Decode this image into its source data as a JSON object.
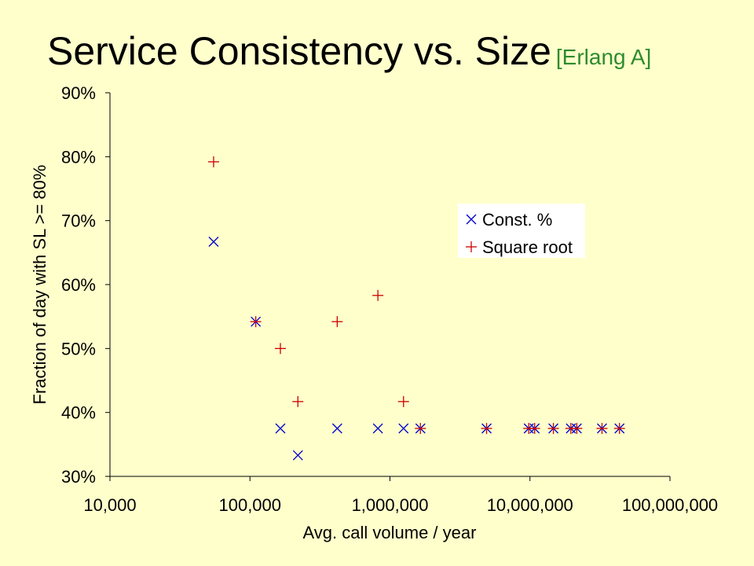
{
  "slide": {
    "title": "Service Consistency vs. Size",
    "subtitle": "[Erlang A]"
  },
  "colors": {
    "background": "#FFFFCC",
    "const_marker": "#0000CC",
    "sqrt_marker": "#CC0000",
    "subtitle": "#2E8B2E"
  },
  "chart_data": {
    "type": "scatter",
    "xlabel": "Avg. call volume / year",
    "ylabel": "Fraction of day with SL >= 80%",
    "xscale": "log",
    "xlim": [
      10000,
      100000000
    ],
    "ylim": [
      30,
      90
    ],
    "x_ticks": [
      10000,
      100000,
      1000000,
      10000000,
      100000000
    ],
    "x_tick_labels": [
      "10,000",
      "100,000",
      "1,000,000",
      "10,000,000",
      "100,000,000"
    ],
    "y_ticks": [
      30,
      40,
      50,
      60,
      70,
      80,
      90
    ],
    "y_tick_labels": [
      "30%",
      "40%",
      "50%",
      "60%",
      "70%",
      "80%",
      "90%"
    ],
    "legend_position": "right, upper-middle",
    "grid": false,
    "series": [
      {
        "name": "Const. %",
        "marker": "x",
        "points": [
          [
            55000,
            66.7
          ],
          [
            110000,
            54.2
          ],
          [
            165000,
            37.5
          ],
          [
            220000,
            33.3
          ],
          [
            420000,
            37.5
          ],
          [
            820000,
            37.5
          ],
          [
            1250000,
            37.5
          ],
          [
            1650000,
            37.5
          ],
          [
            4900000,
            37.5
          ],
          [
            9800000,
            37.5
          ],
          [
            10800000,
            37.5
          ],
          [
            14700000,
            37.5
          ],
          [
            19600000,
            37.5
          ],
          [
            21600000,
            37.5
          ],
          [
            32700000,
            37.5
          ],
          [
            43600000,
            37.5
          ]
        ]
      },
      {
        "name": "Square root",
        "marker": "+",
        "points": [
          [
            55000,
            79.2
          ],
          [
            110000,
            54.2
          ],
          [
            165000,
            50.0
          ],
          [
            220000,
            41.7
          ],
          [
            420000,
            54.2
          ],
          [
            820000,
            58.3
          ],
          [
            1250000,
            41.7
          ],
          [
            1650000,
            37.5
          ],
          [
            4900000,
            37.5
          ],
          [
            9800000,
            37.5
          ],
          [
            10800000,
            37.5
          ],
          [
            14700000,
            37.5
          ],
          [
            19600000,
            37.5
          ],
          [
            21600000,
            37.5
          ],
          [
            32700000,
            37.5
          ],
          [
            43600000,
            37.5
          ]
        ]
      }
    ]
  }
}
